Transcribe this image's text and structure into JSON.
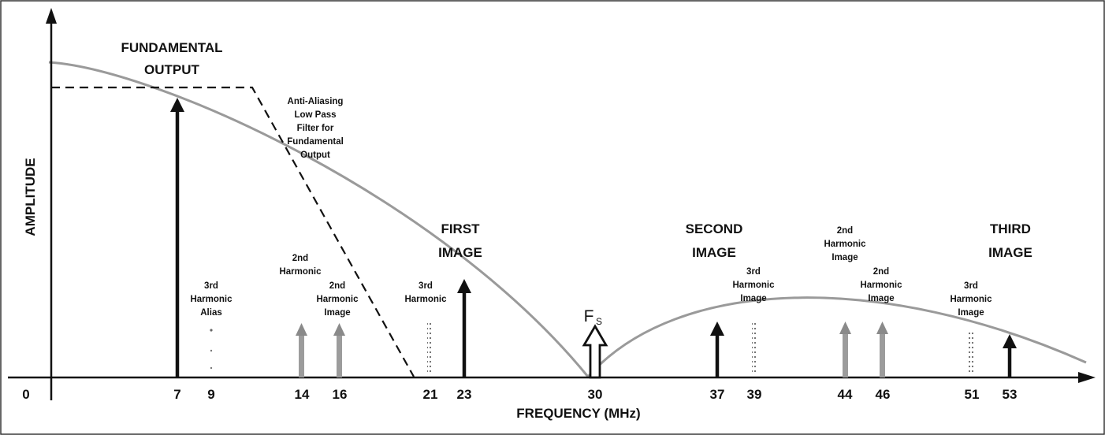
{
  "diagram": {
    "axes": {
      "x_label": "FREQUENCY (MHz)",
      "y_label": "AMPLITUDE",
      "x_ticks": [
        "0",
        "7",
        "9",
        "14",
        "16",
        "21",
        "23",
        "30",
        "37",
        "39",
        "44",
        "46",
        "51",
        "53"
      ]
    },
    "annotations": {
      "fundamental": [
        "FUNDAMENTAL",
        "OUTPUT"
      ],
      "filter": [
        "Anti-Aliasing",
        "Low Pass",
        "Filter for",
        "Fundamental",
        "Output"
      ],
      "first_image": [
        "FIRST",
        "IMAGE"
      ],
      "second_image": [
        "SECOND",
        "IMAGE"
      ],
      "third_image": [
        "THIRD",
        "IMAGE"
      ],
      "third_harmonic_alias": [
        "3rd",
        "Harmonic",
        "Alias"
      ],
      "second_harmonic": [
        "2nd",
        "Harmonic"
      ],
      "second_harmonic_image_16": [
        "2nd",
        "Harmonic",
        "Image"
      ],
      "third_harmonic_21": [
        "3rd",
        "Harmonic"
      ],
      "third_harmonic_image_39": [
        "3rd",
        "Harmonic",
        "Image"
      ],
      "second_harmonic_image_44": [
        "2nd",
        "Harmonic",
        "Image"
      ],
      "second_harmonic_image_46": [
        "2nd",
        "Harmonic",
        "Image"
      ],
      "third_harmonic_image_51": [
        "3rd",
        "Harmonic",
        "Image"
      ],
      "sample_freq_main": "F",
      "sample_freq_sub": "S"
    },
    "components": [
      {
        "freq": 7,
        "kind": "fundamental"
      },
      {
        "freq": 9,
        "kind": "3rd-harmonic"
      },
      {
        "freq": 14,
        "kind": "2nd-harmonic"
      },
      {
        "freq": 16,
        "kind": "2nd-harmonic"
      },
      {
        "freq": 21,
        "kind": "3rd-harmonic"
      },
      {
        "freq": 23,
        "kind": "fundamental"
      },
      {
        "freq": 30,
        "kind": "sample-clock"
      },
      {
        "freq": 37,
        "kind": "fundamental"
      },
      {
        "freq": 39,
        "kind": "3rd-harmonic"
      },
      {
        "freq": 44,
        "kind": "2nd-harmonic"
      },
      {
        "freq": 46,
        "kind": "2nd-harmonic"
      },
      {
        "freq": 51,
        "kind": "3rd-harmonic"
      },
      {
        "freq": 53,
        "kind": "fundamental"
      }
    ]
  }
}
